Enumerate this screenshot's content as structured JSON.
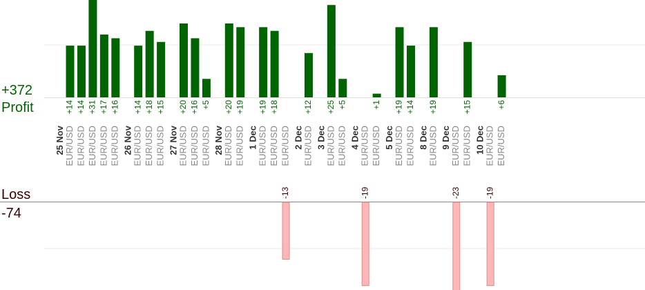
{
  "chart_data": {
    "type": "bar",
    "profit_label": "Profit",
    "profit_total": "+372",
    "loss_label": "Loss",
    "loss_total": "-74",
    "colors": {
      "profit_bar": "#006400",
      "profit_text": "#006400",
      "loss_bar": "#ffb6b6",
      "loss_text": "#3a0000",
      "date_text": "#333333",
      "pair_text": "#888888"
    },
    "days": [
      {
        "date": "25 Nov",
        "trades": [
          {
            "pair": "EUR/USD",
            "value": 14,
            "label": "+14"
          },
          {
            "pair": "EUR/USD",
            "value": 14,
            "label": "+14"
          },
          {
            "pair": "EUR/USD",
            "value": 31,
            "label": "+31"
          },
          {
            "pair": "EUR/USD",
            "value": 17,
            "label": "+17"
          },
          {
            "pair": "EUR/USD",
            "value": 16,
            "label": "+16"
          }
        ]
      },
      {
        "date": "26 Nov",
        "trades": [
          {
            "pair": "EUR/USD",
            "value": 14,
            "label": "+14"
          },
          {
            "pair": "EUR/USD",
            "value": 18,
            "label": "+18"
          },
          {
            "pair": "EUR/USD",
            "value": 15,
            "label": "+15"
          }
        ]
      },
      {
        "date": "27 Nov",
        "trades": [
          {
            "pair": "EUR/USD",
            "value": 20,
            "label": "+20"
          },
          {
            "pair": "EUR/USD",
            "value": 16,
            "label": "+16"
          },
          {
            "pair": "EUR/USD",
            "value": 5,
            "label": "+5"
          }
        ]
      },
      {
        "date": "28 Nov",
        "trades": [
          {
            "pair": "EUR/USD",
            "value": 20,
            "label": "+20"
          },
          {
            "pair": "EUR/USD",
            "value": 19,
            "label": "+19"
          }
        ]
      },
      {
        "date": "1 Dec",
        "trades": [
          {
            "pair": "EUR/USD",
            "value": 19,
            "label": "+19"
          },
          {
            "pair": "EUR/USD",
            "value": 18,
            "label": "+18"
          },
          {
            "pair": "EUR/USD",
            "value": -13,
            "label": "-13"
          }
        ]
      },
      {
        "date": "2 Dec",
        "trades": [
          {
            "pair": "EUR/USD",
            "value": 12,
            "label": "+12"
          }
        ]
      },
      {
        "date": "3 Dec",
        "trades": [
          {
            "pair": "EUR/USD",
            "value": 25,
            "label": "+25"
          },
          {
            "pair": "EUR/USD",
            "value": 5,
            "label": "+5"
          }
        ]
      },
      {
        "date": "4 Dec",
        "trades": [
          {
            "pair": "EUR/USD",
            "value": -19,
            "label": "-19"
          },
          {
            "pair": "EUR/USD",
            "value": 1,
            "label": "+1"
          }
        ]
      },
      {
        "date": "5 Dec",
        "trades": [
          {
            "pair": "EUR/USD",
            "value": 19,
            "label": "+19"
          },
          {
            "pair": "EUR/USD",
            "value": 14,
            "label": "+14"
          }
        ]
      },
      {
        "date": "8 Dec",
        "trades": [
          {
            "pair": "EUR/USD",
            "value": 19,
            "label": "+19"
          }
        ]
      },
      {
        "date": "9 Dec",
        "trades": [
          {
            "pair": "EUR/USD",
            "value": -23,
            "label": "-23"
          },
          {
            "pair": "EUR/USD",
            "value": 15,
            "label": "+15"
          }
        ]
      },
      {
        "date": "10 Dec",
        "trades": [
          {
            "pair": "EUR/USD",
            "value": -19,
            "label": "-19"
          },
          {
            "pair": "EUR/USD",
            "value": 6,
            "label": "+6"
          }
        ]
      }
    ]
  }
}
